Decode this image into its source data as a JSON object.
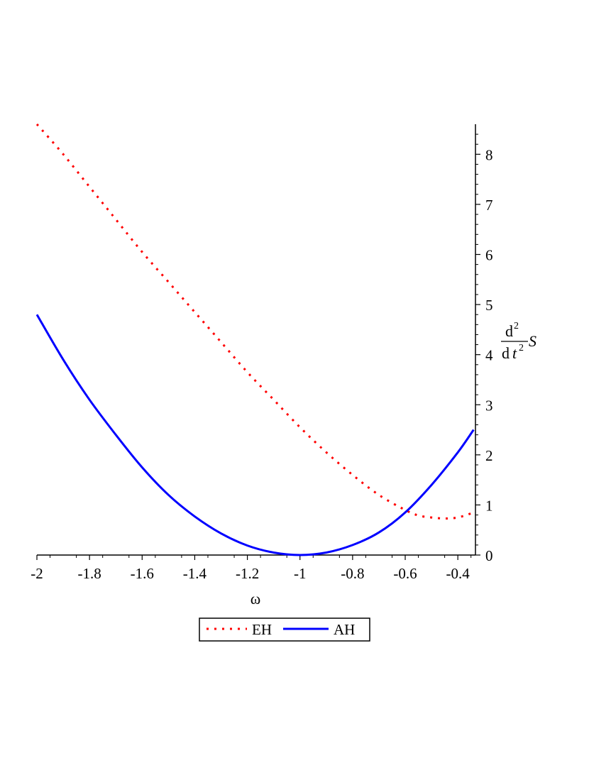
{
  "chart_data": {
    "type": "line",
    "xlabel": "ω",
    "ylabel": {
      "numerator": "d",
      "numerator_sup": "2",
      "denominator_d": "d",
      "denominator_var": "t",
      "denominator_sup": "2",
      "function": "S"
    },
    "xlim": [
      -2,
      -0.33
    ],
    "ylim": [
      0,
      8.6
    ],
    "x_ticks": [
      -2,
      -1.8,
      -1.6,
      -1.4,
      -1.2,
      -1,
      -0.8,
      -0.6,
      -0.4
    ],
    "x_tick_labels": [
      "-2",
      "-1.8",
      "-1.6",
      "-1.4",
      "-1.2",
      "-1",
      "-0.8",
      "-0.6",
      "-0.4"
    ],
    "y_ticks": [
      0,
      1,
      2,
      3,
      4,
      5,
      6,
      7,
      8
    ],
    "y_tick_labels": [
      "0",
      "1",
      "2",
      "3",
      "4",
      "5",
      "6",
      "7",
      "8"
    ],
    "y_axis_position": "right",
    "grid": false,
    "legend_position": "bottom-center",
    "series": [
      {
        "name": "EH",
        "color": "#ff0000",
        "style": "dotted",
        "x": [
          -2.0,
          -1.9,
          -1.8,
          -1.7,
          -1.6,
          -1.5,
          -1.4,
          -1.3,
          -1.2,
          -1.1,
          -1.0,
          -0.9,
          -0.8,
          -0.7,
          -0.6,
          -0.55,
          -0.5,
          -0.45,
          -0.4,
          -0.35
        ],
        "y": [
          8.6,
          8.0,
          7.35,
          6.7,
          6.05,
          5.45,
          4.85,
          4.25,
          3.65,
          3.1,
          2.55,
          2.05,
          1.6,
          1.2,
          0.9,
          0.79,
          0.75,
          0.73,
          0.75,
          0.83
        ]
      },
      {
        "name": "AH",
        "color": "#0000ff",
        "style": "solid",
        "x": [
          -2.0,
          -1.9,
          -1.8,
          -1.7,
          -1.6,
          -1.5,
          -1.4,
          -1.3,
          -1.2,
          -1.1,
          -1.0,
          -0.9,
          -0.8,
          -0.7,
          -0.6,
          -0.5,
          -0.4,
          -0.34
        ],
        "y": [
          4.8,
          3.9,
          3.1,
          2.4,
          1.75,
          1.2,
          0.77,
          0.43,
          0.19,
          0.05,
          0.0,
          0.05,
          0.2,
          0.45,
          0.85,
          1.4,
          2.05,
          2.5
        ]
      }
    ]
  }
}
